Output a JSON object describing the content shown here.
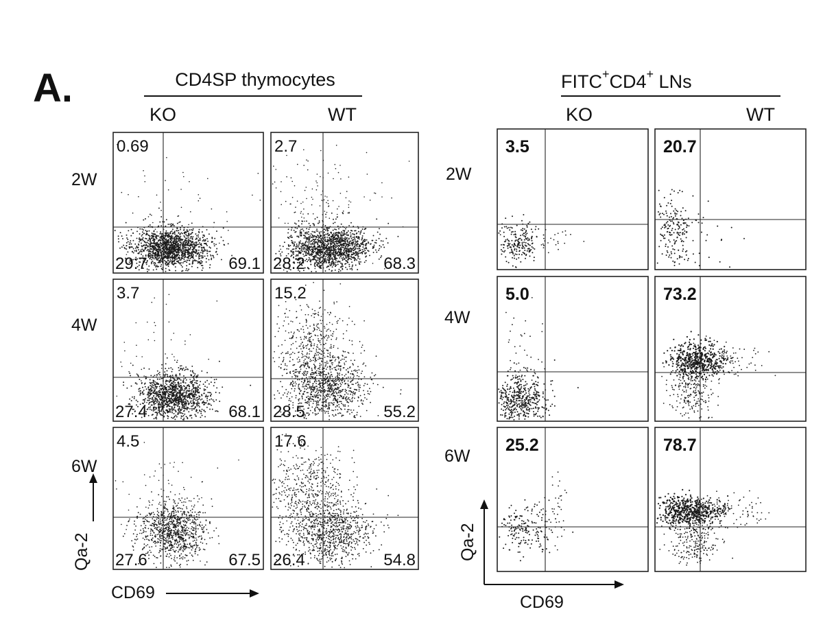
{
  "panel_label": "A.",
  "groups": [
    {
      "title": "CD4SP thymocytes",
      "title_sup": "",
      "columns": [
        "KO",
        "WT"
      ],
      "rows": [
        "2W",
        "4W",
        "6W"
      ],
      "y_axis_label": "Qa-2",
      "x_axis_label": "CD69",
      "plots": [
        [
          {
            "ul": "0.69",
            "ll": "29.7",
            "lr": "69.1"
          },
          {
            "ul": "2.7",
            "ll": "28.2",
            "lr": "68.3"
          }
        ],
        [
          {
            "ul": "3.7",
            "ll": "27.4",
            "lr": "68.1"
          },
          {
            "ul": "15.2",
            "ll": "28.5",
            "lr": "55.2"
          }
        ],
        [
          {
            "ul": "4.5",
            "ll": "27.6",
            "lr": "67.5"
          },
          {
            "ul": "17.6",
            "ll": "26.4",
            "lr": "54.8"
          }
        ]
      ]
    },
    {
      "title_parts": [
        "FITC",
        "+",
        "CD4",
        "+",
        " LNs"
      ],
      "columns": [
        "KO",
        "WT"
      ],
      "rows": [
        "2W",
        "4W",
        "6W"
      ],
      "y_axis_label": "Qa-2",
      "x_axis_label": "CD69",
      "plots": [
        [
          {
            "ul": "3.5"
          },
          {
            "ul": "20.7"
          }
        ],
        [
          {
            "ul": "5.0"
          },
          {
            "ul": "73.2"
          }
        ],
        [
          {
            "ul": "25.2"
          },
          {
            "ul": "78.7"
          }
        ]
      ]
    }
  ],
  "colors": {
    "ink": "#111111",
    "dots": "#1a1a1a",
    "background": "#ffffff"
  }
}
